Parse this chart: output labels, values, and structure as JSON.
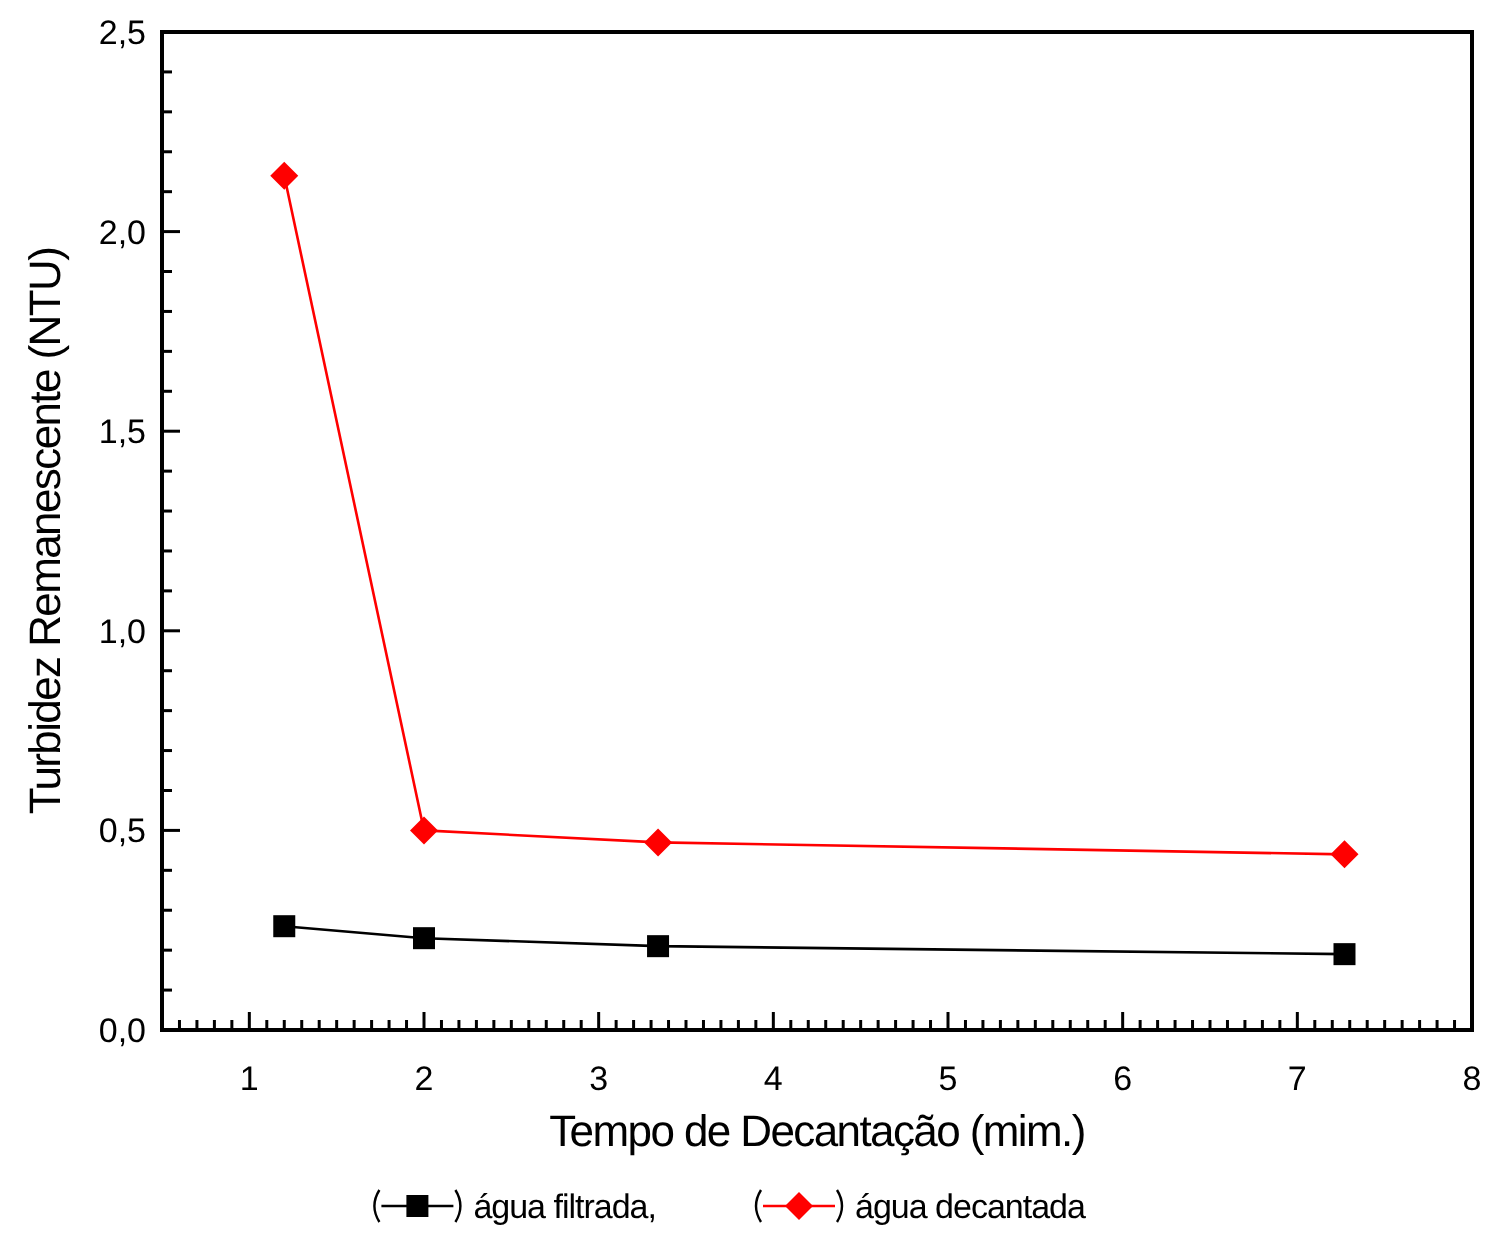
{
  "chart_data": {
    "type": "line",
    "xlabel": "Tempo de Decantação (mim.)",
    "ylabel": "Turbidez Remanescente (NTU)",
    "xlim": [
      0.5,
      8
    ],
    "ylim": [
      0,
      2.5
    ],
    "xticks": [
      1,
      2,
      3,
      4,
      5,
      6,
      7,
      8,
      {
        "value": 0.6,
        "label": null
      },
      {
        "value": 0.7,
        "label": null
      },
      {
        "value": 0.8,
        "label": null
      },
      {
        "value": 0.9,
        "label": null
      },
      {
        "value": 1.1,
        "label": null
      },
      {
        "value": 1.2,
        "label": null
      },
      {
        "value": 1.3,
        "label": null
      },
      {
        "value": 1.4,
        "label": null
      },
      {
        "value": 1.5,
        "label": null
      },
      {
        "value": 1.6,
        "label": null
      },
      {
        "value": 1.7,
        "label": null
      },
      {
        "value": 1.8,
        "label": null
      },
      {
        "value": 1.9,
        "label": null
      },
      {
        "value": 2.1,
        "label": null
      },
      {
        "value": 2.2,
        "label": null
      },
      {
        "value": 2.3,
        "label": null
      },
      {
        "value": 2.4,
        "label": null
      },
      {
        "value": 2.5,
        "label": null
      },
      {
        "value": 2.6,
        "label": null
      },
      {
        "value": 2.7,
        "label": null
      },
      {
        "value": 2.8,
        "label": null
      },
      {
        "value": 2.9,
        "label": null
      },
      {
        "value": 3.1,
        "label": null
      },
      {
        "value": 3.2,
        "label": null
      },
      {
        "value": 3.3,
        "label": null
      },
      {
        "value": 3.4,
        "label": null
      },
      {
        "value": 3.5,
        "label": null
      },
      {
        "value": 3.6,
        "label": null
      },
      {
        "value": 3.7,
        "label": null
      },
      {
        "value": 3.8,
        "label": null
      },
      {
        "value": 3.9,
        "label": null
      },
      {
        "value": 4.1,
        "label": null
      },
      {
        "value": 4.2,
        "label": null
      },
      {
        "value": 4.3,
        "label": null
      },
      {
        "value": 4.4,
        "label": null
      },
      {
        "value": 4.5,
        "label": null
      },
      {
        "value": 4.6,
        "label": null
      },
      {
        "value": 4.7,
        "label": null
      },
      {
        "value": 4.8,
        "label": null
      },
      {
        "value": 4.9,
        "label": null
      },
      {
        "value": 5.1,
        "label": null
      },
      {
        "value": 5.2,
        "label": null
      },
      {
        "value": 5.3,
        "label": null
      },
      {
        "value": 5.4,
        "label": null
      },
      {
        "value": 5.5,
        "label": null
      },
      {
        "value": 5.6,
        "label": null
      },
      {
        "value": 5.7,
        "label": null
      },
      {
        "value": 5.8,
        "label": null
      },
      {
        "value": 5.9,
        "label": null
      },
      {
        "value": 6.1,
        "label": null
      },
      {
        "value": 6.2,
        "label": null
      },
      {
        "value": 6.3,
        "label": null
      },
      {
        "value": 6.4,
        "label": null
      },
      {
        "value": 6.5,
        "label": null
      },
      {
        "value": 6.6,
        "label": null
      },
      {
        "value": 6.7,
        "label": null
      },
      {
        "value": 6.8,
        "label": null
      },
      {
        "value": 6.9,
        "label": null
      },
      {
        "value": 7.1,
        "label": null
      },
      {
        "value": 7.2,
        "label": null
      },
      {
        "value": 7.3,
        "label": null
      },
      {
        "value": 7.4,
        "label": null
      },
      {
        "value": 7.5,
        "label": null
      },
      {
        "value": 7.6,
        "label": null
      },
      {
        "value": 7.7,
        "label": null
      },
      {
        "value": 7.8,
        "label": null
      },
      {
        "value": 7.9,
        "label": null
      }
    ],
    "yticks": [
      {
        "value": 0,
        "label": "0,0"
      },
      {
        "value": 0.5,
        "label": "0,5"
      },
      {
        "value": 1,
        "label": "1,0"
      },
      {
        "value": 1.5,
        "label": "1,5"
      },
      {
        "value": 2,
        "label": "2,0"
      },
      {
        "value": 2.5,
        "label": "2,5"
      },
      {
        "value": 0.1,
        "label": null
      },
      {
        "value": 0.2,
        "label": null
      },
      {
        "value": 0.3,
        "label": null
      },
      {
        "value": 0.4,
        "label": null
      },
      {
        "value": 0.6,
        "label": null
      },
      {
        "value": 0.7,
        "label": null
      },
      {
        "value": 0.8,
        "label": null
      },
      {
        "value": 0.9,
        "label": null
      },
      {
        "value": 1.1,
        "label": null
      },
      {
        "value": 1.2,
        "label": null
      },
      {
        "value": 1.3,
        "label": null
      },
      {
        "value": 1.4,
        "label": null
      },
      {
        "value": 1.6,
        "label": null
      },
      {
        "value": 1.7,
        "label": null
      },
      {
        "value": 1.8,
        "label": null
      },
      {
        "value": 1.9,
        "label": null
      },
      {
        "value": 2.1,
        "label": null
      },
      {
        "value": 2.2,
        "label": null
      },
      {
        "value": 2.3,
        "label": null
      },
      {
        "value": 2.4,
        "label": null
      }
    ],
    "x": [
      1.2,
      2.0,
      3.34,
      7.27
    ],
    "series": [
      {
        "name": "água filtrada,",
        "color": "#000000",
        "marker": "square",
        "values": [
          0.26,
          0.23,
          0.21,
          0.19
        ]
      },
      {
        "name": "água decantada",
        "color": "#ff0000",
        "marker": "diamond",
        "values": [
          2.14,
          0.5,
          0.47,
          0.44
        ]
      }
    ],
    "legend": "bottom",
    "grid": false
  }
}
